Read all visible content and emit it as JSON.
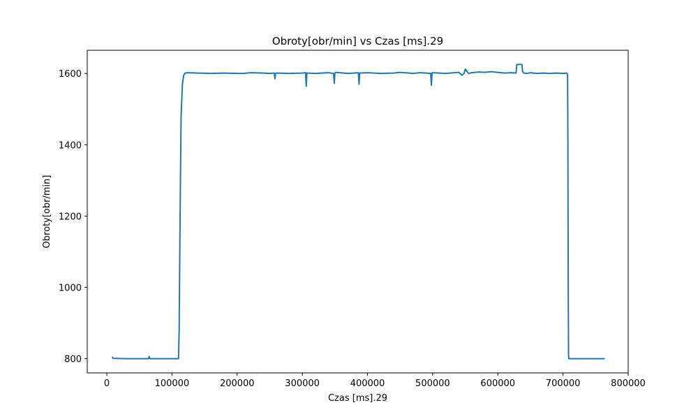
{
  "chart_data": {
    "type": "line",
    "title": "Obroty[obr/min] vs Czas [ms].29",
    "xlabel": "Czas [ms].29",
    "ylabel": "Obroty[obr/min]",
    "xlim": [
      -30000,
      800000
    ],
    "ylim": [
      760,
      1665
    ],
    "xticks": [
      0,
      100000,
      200000,
      300000,
      400000,
      500000,
      600000,
      700000,
      800000
    ],
    "xtick_labels": [
      "0",
      "100000",
      "200000",
      "300000",
      "400000",
      "500000",
      "600000",
      "700000",
      "800000"
    ],
    "yticks": [
      800,
      1000,
      1200,
      1400,
      1600
    ],
    "ytick_labels": [
      "800",
      "1000",
      "1200",
      "1400",
      "1600"
    ],
    "grid": false,
    "colors": {
      "series": "#1f77b4"
    },
    "series": [
      {
        "x": [
          8000,
          10000,
          30000,
          50000,
          64000,
          65000,
          66000,
          80000,
          100000,
          110000,
          111000,
          112000,
          113000,
          114000,
          116000,
          118000,
          120000,
          125000,
          140000,
          160000,
          180000,
          200000,
          210000,
          220000,
          240000,
          250000,
          257000,
          258000,
          259000,
          260000,
          280000,
          300000,
          305000,
          306000,
          307000,
          320000,
          340000,
          348000,
          349000,
          350000,
          351000,
          370000,
          386000,
          387000,
          388000,
          400000,
          420000,
          440000,
          450000,
          470000,
          480000,
          490000,
          497000,
          498000,
          499000,
          500000,
          520000,
          540000,
          545000,
          548000,
          550000,
          555000,
          560000,
          570000,
          580000,
          590000,
          600000,
          610000,
          620000,
          628000,
          629000,
          630000,
          637000,
          638000,
          640000,
          645000,
          650000,
          660000,
          670000,
          680000,
          690000,
          700000,
          706000,
          707000,
          707500,
          708000,
          708500,
          709000,
          710000,
          720000,
          740000,
          760000,
          764000
        ],
        "y": [
          805,
          801,
          800,
          800,
          800,
          806,
          800,
          800,
          800,
          800,
          880,
          1100,
          1300,
          1480,
          1570,
          1595,
          1601,
          1602,
          1601,
          1600,
          1601,
          1600,
          1600,
          1602,
          1601,
          1600,
          1601,
          1585,
          1600,
          1601,
          1600,
          1601,
          1602,
          1564,
          1601,
          1600,
          1602,
          1600,
          1572,
          1601,
          1603,
          1600,
          1602,
          1570,
          1601,
          1602,
          1600,
          1601,
          1603,
          1600,
          1602,
          1601,
          1600,
          1567,
          1601,
          1602,
          1600,
          1603,
          1595,
          1600,
          1612,
          1600,
          1602,
          1604,
          1603,
          1605,
          1603,
          1601,
          1602,
          1601,
          1625,
          1625,
          1625,
          1605,
          1601,
          1600,
          1602,
          1600,
          1601,
          1600,
          1601,
          1600,
          1601,
          1596,
          1400,
          1000,
          810,
          800,
          800,
          800,
          800,
          800,
          800
        ]
      }
    ]
  }
}
